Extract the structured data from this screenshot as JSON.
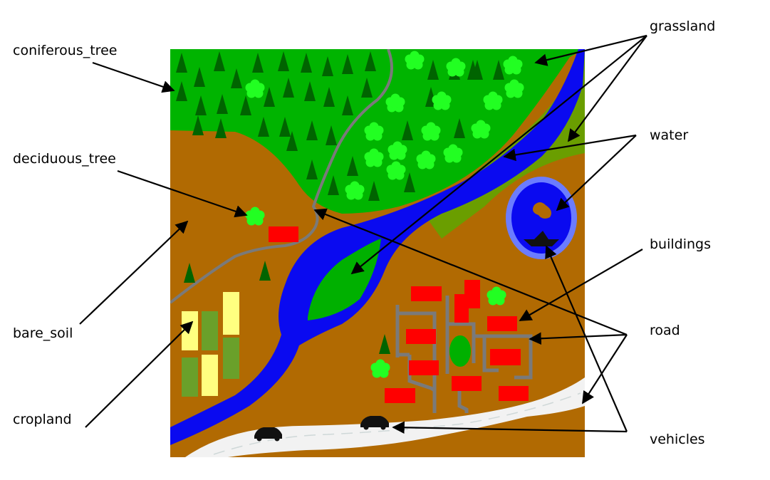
{
  "labels": {
    "coniferous_tree": "coniferous_tree",
    "deciduous_tree": "deciduous_tree",
    "bare_soil": "bare_soil",
    "cropland": "cropland",
    "grassland": "grassland",
    "water": "water",
    "buildings": "buildings",
    "road": "road",
    "vehicles": "vehicles"
  },
  "colors": {
    "coniferous_forest": "#00b400",
    "conifer": "#006400",
    "deciduous": "#22ff22",
    "bare_soil": "#b16a02",
    "water": "#0a0af0",
    "lake_rim": "#6b7cff",
    "grassland": "#6a9e00",
    "island": "#00b000",
    "building": "#ff0000",
    "road": "#7a7a7a",
    "highway": "#f2f2f2",
    "crop_yellow": "#ffff80",
    "crop_green": "#6aa02a",
    "vehicle": "#111111"
  }
}
